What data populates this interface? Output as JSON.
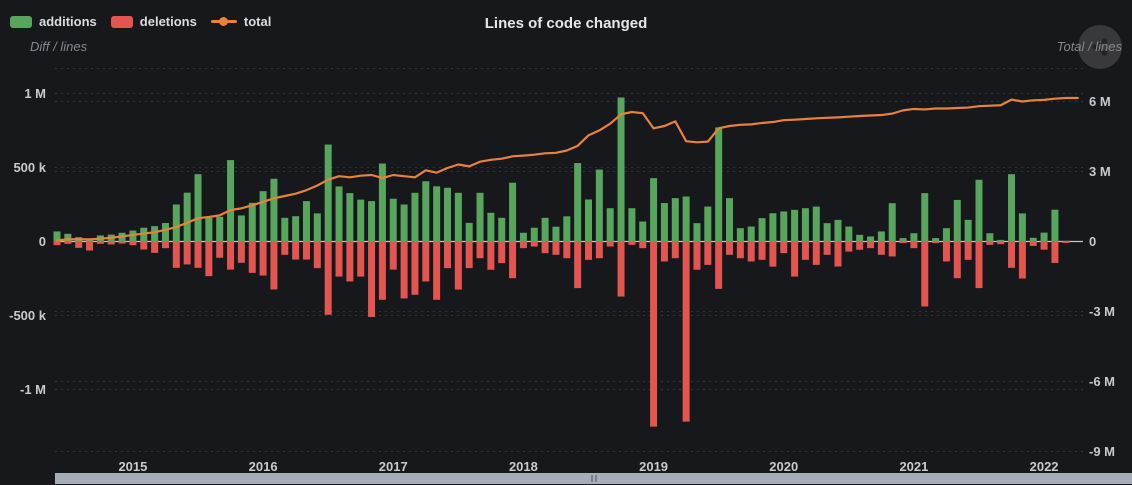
{
  "header": {
    "title": "Lines of code changed",
    "legend": [
      {
        "label": "additions",
        "color": "#58a55d",
        "type": "box"
      },
      {
        "label": "deletions",
        "color": "#e25550",
        "type": "box"
      },
      {
        "label": "total",
        "color": "#e8823d",
        "type": "line"
      }
    ],
    "left_axis_title": "Diff / lines",
    "right_axis_title": "Total / lines"
  },
  "chart_data": {
    "type": "bar+line",
    "title": "Lines of code changed",
    "x_unit": "month",
    "grid": "dashed-horizontal",
    "left_axis": {
      "label": "Diff / lines",
      "tick_labels": [
        "1 M",
        "500 k",
        "0",
        "-500 k",
        "-1 M"
      ],
      "tick_values_k": [
        1000,
        500,
        0,
        -500,
        -1000
      ],
      "range_k": [
        -1200,
        1150
      ]
    },
    "right_axis": {
      "label": "Total / lines",
      "tick_labels": [
        "6 M",
        "3 M",
        "0",
        "-3 M",
        "-6 M",
        "-9 M"
      ],
      "tick_values_m": [
        6,
        3,
        0,
        -3,
        -6,
        -9
      ],
      "range_m": [
        -9.6,
        7.4
      ]
    },
    "months": [
      "2014-06",
      "2014-07",
      "2014-08",
      "2014-09",
      "2014-10",
      "2014-11",
      "2014-12",
      "2015-01",
      "2015-02",
      "2015-03",
      "2015-04",
      "2015-05",
      "2015-06",
      "2015-07",
      "2015-08",
      "2015-09",
      "2015-10",
      "2015-11",
      "2015-12",
      "2016-01",
      "2016-02",
      "2016-03",
      "2016-04",
      "2016-05",
      "2016-06",
      "2016-07",
      "2016-08",
      "2016-09",
      "2016-10",
      "2016-11",
      "2016-12",
      "2017-01",
      "2017-02",
      "2017-03",
      "2017-04",
      "2017-05",
      "2017-06",
      "2017-07",
      "2017-08",
      "2017-09",
      "2017-10",
      "2017-11",
      "2017-12",
      "2018-01",
      "2018-02",
      "2018-03",
      "2018-04",
      "2018-05",
      "2018-06",
      "2018-07",
      "2018-08",
      "2018-09",
      "2018-10",
      "2018-11",
      "2018-12",
      "2019-01",
      "2019-02",
      "2019-03",
      "2019-04",
      "2019-05",
      "2019-06",
      "2019-07",
      "2019-08",
      "2019-09",
      "2019-10",
      "2019-11",
      "2019-12",
      "2020-01",
      "2020-02",
      "2020-03",
      "2020-04",
      "2020-05",
      "2020-06",
      "2020-07",
      "2020-08",
      "2020-09",
      "2020-10",
      "2020-11",
      "2020-12",
      "2021-01",
      "2021-02",
      "2021-03",
      "2021-04",
      "2021-05",
      "2021-06",
      "2021-07",
      "2021-08",
      "2021-09",
      "2021-10",
      "2021-11",
      "2021-12",
      "2022-01",
      "2022-02",
      "2022-03"
    ],
    "series": [
      {
        "name": "additions",
        "type": "bar",
        "axis": "left",
        "color": "#58a55d",
        "values_k": [
          68,
          52,
          29,
          20,
          41,
          47,
          59,
          74,
          93,
          104,
          125,
          250,
          330,
          455,
          160,
          167,
          550,
          176,
          261,
          340,
          424,
          160,
          171,
          273,
          190,
          655,
          372,
          327,
          283,
          273,
          527,
          289,
          250,
          329,
          407,
          373,
          363,
          329,
          126,
          329,
          194,
          160,
          397,
          59,
          93,
          160,
          100,
          170,
          530,
          284,
          486,
          225,
          973,
          225,
          135,
          428,
          260,
          293,
          304,
          124,
          236,
          771,
          293,
          90,
          101,
          158,
          191,
          203,
          214,
          225,
          236,
          124,
          146,
          101,
          45,
          34,
          68,
          259,
          23,
          56,
          327,
          23,
          90,
          281,
          146,
          417,
          56,
          11,
          455,
          190,
          25,
          60,
          215,
          5
        ]
      },
      {
        "name": "deletions",
        "type": "bar",
        "axis": "left",
        "color": "#e25550",
        "values_k": [
          -25,
          -16,
          -43,
          -61,
          -16,
          -20,
          -14,
          -25,
          -54,
          -77,
          -45,
          -178,
          -155,
          -178,
          -234,
          -110,
          -190,
          -144,
          -212,
          -230,
          -324,
          -90,
          -122,
          -122,
          -180,
          -495,
          -237,
          -270,
          -237,
          -510,
          -394,
          -190,
          -385,
          -360,
          -270,
          -394,
          -180,
          -325,
          -180,
          -113,
          -191,
          -146,
          -248,
          -45,
          -34,
          -79,
          -90,
          -113,
          -315,
          -124,
          -113,
          -34,
          -372,
          -23,
          -45,
          -1251,
          -135,
          -113,
          -1217,
          -191,
          -158,
          -320,
          -90,
          -113,
          -135,
          -124,
          -170,
          -79,
          -237,
          -124,
          -158,
          -90,
          -169,
          -68,
          -56,
          -45,
          -90,
          -101,
          -11,
          -45,
          -439,
          -11,
          -135,
          -248,
          -124,
          -315,
          -23,
          -18,
          -178,
          -250,
          -30,
          -55,
          -145,
          -10
        ]
      },
      {
        "name": "total",
        "type": "line",
        "axis": "right",
        "color": "#e8823d",
        "values_m": [
          0.05,
          0.09,
          0.1,
          0.09,
          0.12,
          0.16,
          0.22,
          0.28,
          0.34,
          0.4,
          0.5,
          0.62,
          0.8,
          1.0,
          1.05,
          1.12,
          1.35,
          1.42,
          1.55,
          1.7,
          1.85,
          1.95,
          2.05,
          2.2,
          2.4,
          2.65,
          2.8,
          2.75,
          2.82,
          2.85,
          2.72,
          2.85,
          2.8,
          2.75,
          3.05,
          2.95,
          3.15,
          3.3,
          3.22,
          3.42,
          3.5,
          3.55,
          3.65,
          3.68,
          3.72,
          3.78,
          3.8,
          3.9,
          4.1,
          4.55,
          4.76,
          5.05,
          5.45,
          5.55,
          5.5,
          4.85,
          4.95,
          5.15,
          4.3,
          4.25,
          4.28,
          4.85,
          4.95,
          5.0,
          5.02,
          5.08,
          5.12,
          5.2,
          5.22,
          5.25,
          5.28,
          5.3,
          5.32,
          5.35,
          5.38,
          5.4,
          5.42,
          5.48,
          5.62,
          5.68,
          5.66,
          5.7,
          5.7,
          5.72,
          5.74,
          5.8,
          5.82,
          5.84,
          6.08,
          6.0,
          6.05,
          6.07,
          6.12,
          6.15
        ]
      }
    ],
    "legend_position": "top-left"
  },
  "colors": {
    "background": "#17181c",
    "grid": "#33363b",
    "zero_line": "#c4c6c9",
    "axis_text": "#c9cacc",
    "subtitle_text": "#85888d",
    "scrollbar": "#a6adb7"
  },
  "icons": {
    "corner_button": "share-icon"
  }
}
